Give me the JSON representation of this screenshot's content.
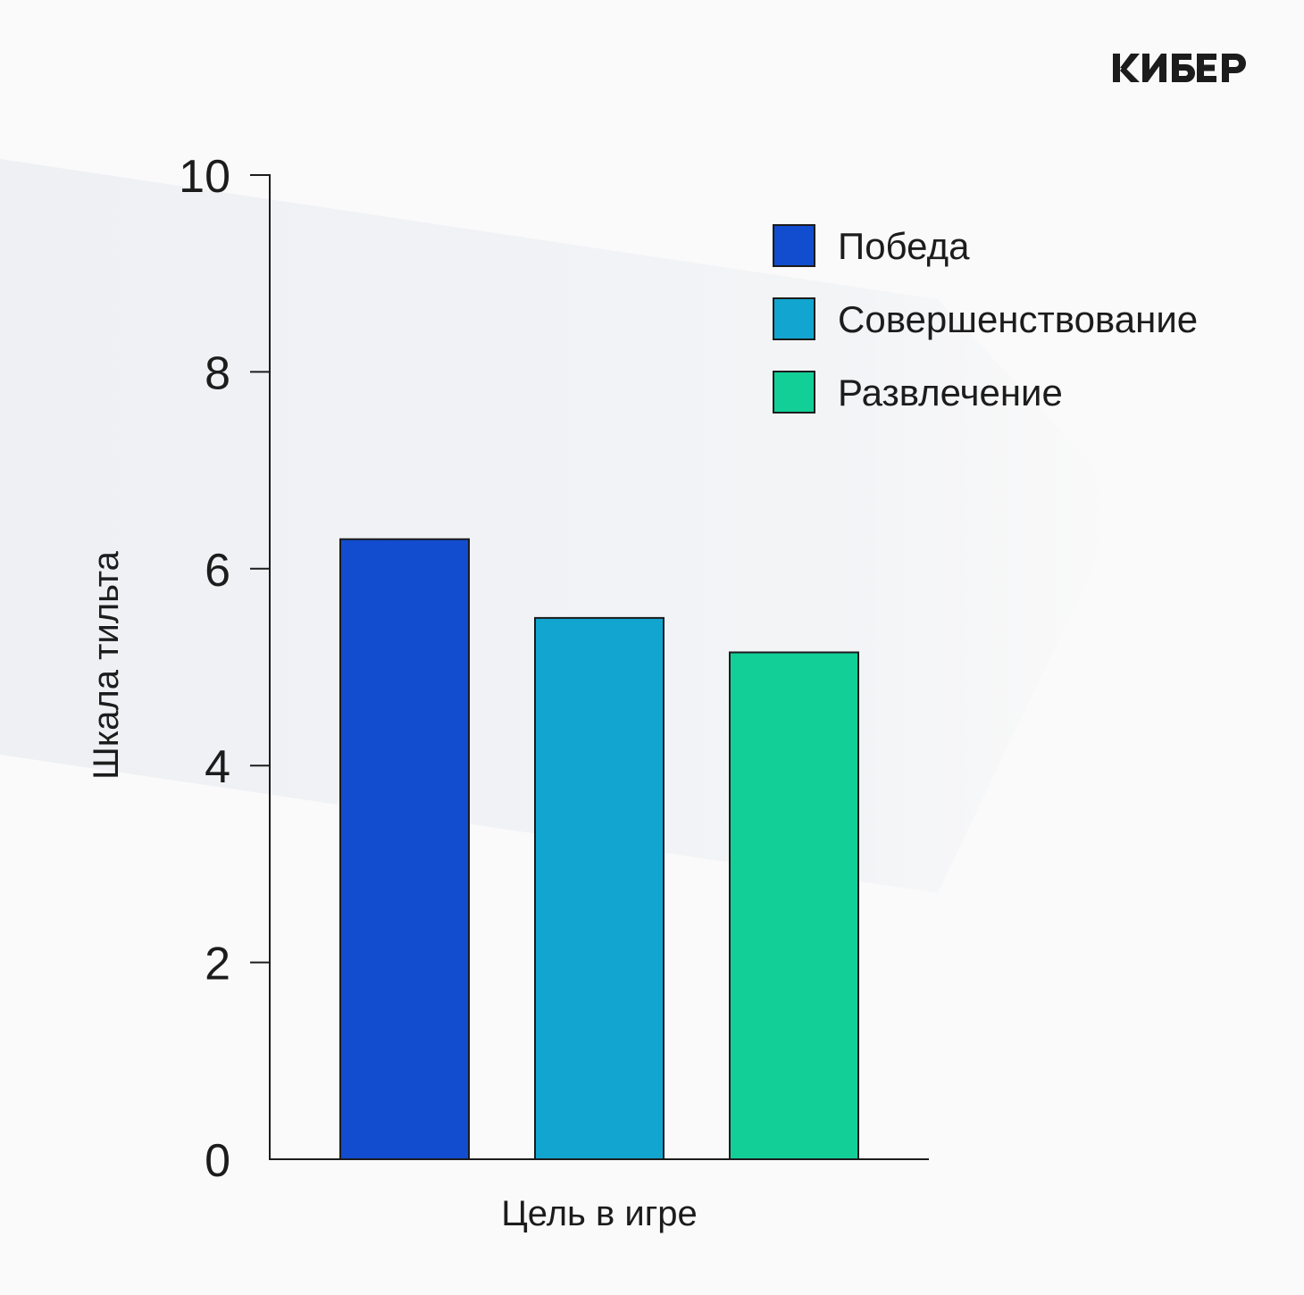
{
  "brand": {
    "logo_text": "КИБЕР"
  },
  "colors": {
    "background": "#fafafa",
    "background_shape": "#eef0f4",
    "axis": "#1c1c1c",
    "bar_stroke": "#1c1c1c",
    "text": "#1c1c1c"
  },
  "chart_data": {
    "type": "bar",
    "title": "",
    "xlabel": "Цель в игре",
    "ylabel": "Шкала тильта",
    "ylim": [
      0,
      10
    ],
    "yticks": [
      0,
      2,
      4,
      6,
      8,
      10
    ],
    "grid": false,
    "legend_position": "top-right",
    "categories": [
      "Победа",
      "Совершенствование",
      "Развлечение"
    ],
    "series": [
      {
        "name": "Победа",
        "value": 6.3,
        "color": "#124ccf"
      },
      {
        "name": "Совершенствование",
        "value": 5.5,
        "color": "#12a5d0"
      },
      {
        "name": "Развлечение",
        "value": 5.15,
        "color": "#12cf98"
      }
    ]
  }
}
